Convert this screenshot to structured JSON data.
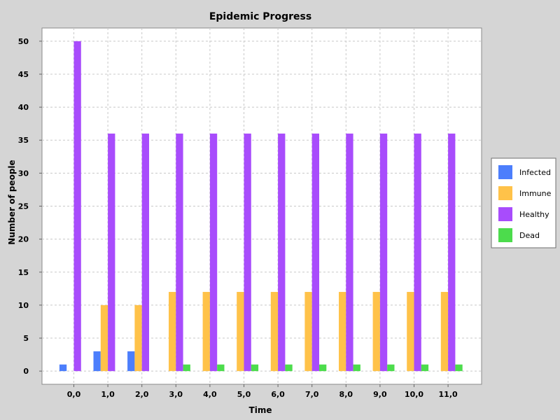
{
  "chart_data": {
    "type": "bar",
    "title": "Epidemic Progress",
    "xlabel": "Time",
    "ylabel": "Number of people",
    "categories": [
      "0,0",
      "1,0",
      "2,0",
      "3,0",
      "4,0",
      "5,0",
      "6,0",
      "7,0",
      "8,0",
      "9,0",
      "10,0",
      "11,0"
    ],
    "series": [
      {
        "name": "Infected",
        "color": "#4c7efc",
        "values": [
          1,
          3,
          3,
          0,
          0,
          0,
          0,
          0,
          0,
          0,
          0,
          0
        ]
      },
      {
        "name": "Immune",
        "color": "#ffc249",
        "values": [
          0,
          10,
          10,
          12,
          12,
          12,
          12,
          12,
          12,
          12,
          12,
          12
        ]
      },
      {
        "name": "Healthy",
        "color": "#a84cfc",
        "values": [
          50,
          36,
          36,
          36,
          36,
          36,
          36,
          36,
          36,
          36,
          36,
          36
        ]
      },
      {
        "name": "Dead",
        "color": "#4cdc4c",
        "values": [
          0,
          0,
          0,
          1,
          1,
          1,
          1,
          1,
          1,
          1,
          1,
          1
        ]
      }
    ],
    "ylim": [
      -2,
      52
    ],
    "yticks": [
      0,
      5,
      10,
      15,
      20,
      25,
      30,
      35,
      40,
      45,
      50
    ],
    "grid": true,
    "legend_position": "right"
  }
}
